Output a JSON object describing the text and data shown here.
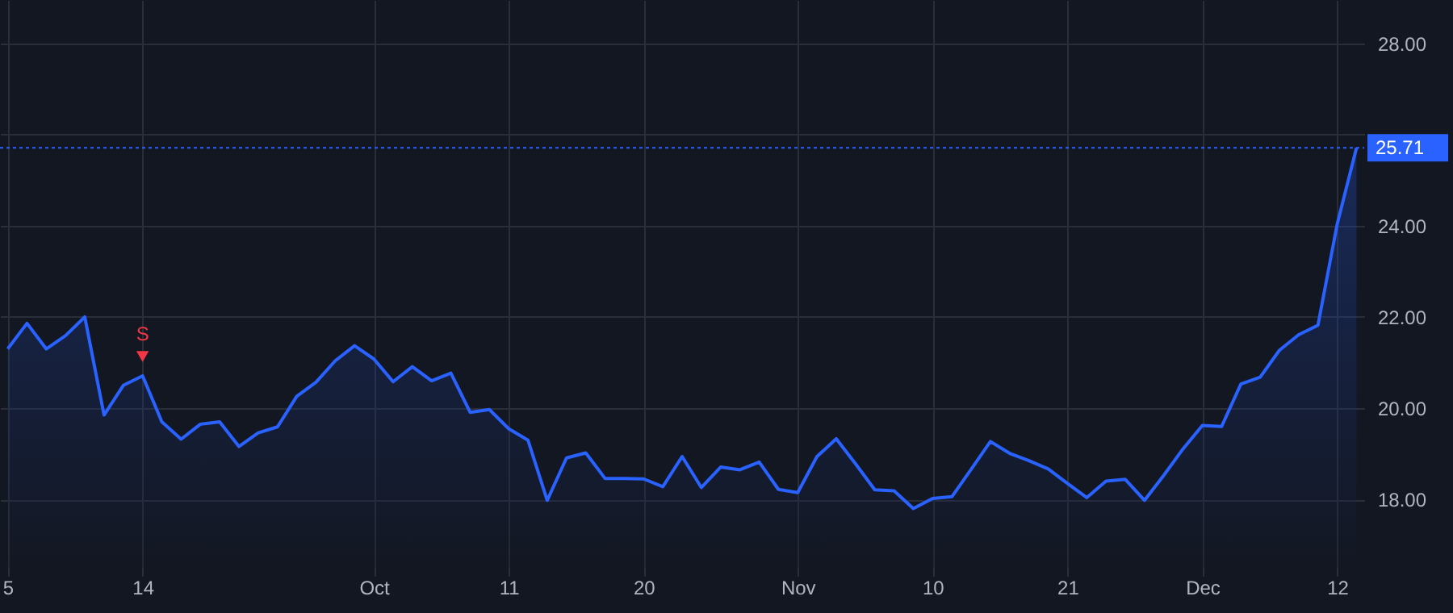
{
  "chart_data": {
    "type": "area",
    "categories": [
      "5",
      null,
      null,
      null,
      null,
      null,
      null,
      "14",
      null,
      null,
      null,
      null,
      null,
      null,
      null,
      null,
      null,
      null,
      null,
      "Oct",
      null,
      null,
      null,
      null,
      null,
      null,
      "11",
      null,
      null,
      null,
      null,
      null,
      null,
      "20",
      null,
      null,
      null,
      null,
      null,
      null,
      null,
      "Nov",
      null,
      null,
      null,
      null,
      null,
      null,
      "10",
      null,
      null,
      null,
      null,
      null,
      null,
      "21",
      null,
      null,
      null,
      null,
      null,
      null,
      "Dec",
      null,
      null,
      null,
      null,
      null,
      null,
      "12",
      null
    ],
    "series": [
      {
        "color": "#2962ff",
        "values": [
          21.3,
          21.86,
          21.3,
          21.59,
          22.0,
          19.85,
          20.5,
          20.71,
          19.7,
          19.32,
          19.65,
          19.7,
          19.16,
          19.46,
          19.59,
          20.26,
          20.57,
          21.04,
          21.37,
          21.08,
          20.58,
          20.91,
          20.6,
          20.77,
          19.91,
          19.97,
          19.55,
          19.3,
          17.98,
          18.91,
          19.02,
          18.46,
          18.46,
          18.45,
          18.28,
          18.94,
          18.26,
          18.71,
          18.65,
          18.82,
          18.22,
          18.15,
          18.94,
          19.33,
          18.78,
          18.21,
          18.19,
          17.8,
          18.02,
          18.06,
          18.66,
          19.27,
          19.01,
          18.85,
          18.67,
          18.35,
          18.04,
          18.4,
          18.44,
          17.98,
          18.53,
          19.11,
          19.62,
          19.6,
          20.53,
          20.68,
          21.27,
          21.61,
          21.82,
          24.04,
          25.71
        ]
      }
    ],
    "ylim": [
      16.5,
      28.95
    ],
    "yticks": [
      {
        "value": 18,
        "label": "18.00"
      },
      {
        "value": 20,
        "label": "20.00"
      },
      {
        "value": 22,
        "label": "22.00"
      },
      {
        "value": 24,
        "label": "24.00"
      },
      {
        "value": 26,
        "label": null
      },
      {
        "value": 28,
        "label": "28.00"
      }
    ],
    "grid": true,
    "ref_lines": [
      {
        "axis": "y",
        "value": 25.71,
        "label": "25.71",
        "color": "#2962ff",
        "line_style": "dotted"
      }
    ],
    "annotations": [
      {
        "text": "S",
        "x": "14",
        "y": 20.71
      }
    ]
  }
}
